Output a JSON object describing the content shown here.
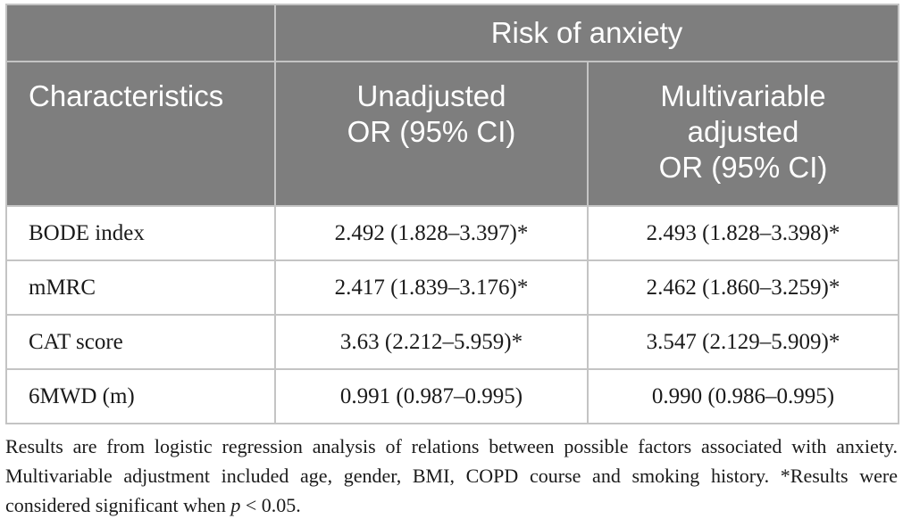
{
  "table": {
    "group_header": "Risk of anxiety",
    "columns": {
      "characteristics": "Characteristics",
      "unadjusted": [
        "Unadjusted",
        "OR (95% CI)"
      ],
      "adjusted": [
        "Multivariable",
        "adjusted",
        "OR (95% CI)"
      ]
    },
    "rows": [
      {
        "label": "BODE index",
        "unadjusted": "2.492 (1.828–3.397)*",
        "adjusted": "2.493 (1.828–3.398)*"
      },
      {
        "label": "mMRC",
        "unadjusted": "2.417 (1.839–3.176)*",
        "adjusted": "2.462 (1.860–3.259)*"
      },
      {
        "label": "CAT score",
        "unadjusted": "3.63 (2.212–5.959)*",
        "adjusted": "3.547 (2.129–5.909)*"
      },
      {
        "label": "6MWD (m)",
        "unadjusted": "0.991 (0.987–0.995)",
        "adjusted": "0.990 (0.986–0.995)"
      }
    ]
  },
  "footnote": {
    "text_before_p": "Results are from logistic regression analysis of relations between possible factors associated with anxiety. Multivariable adjustment included age, gender, BMI, COPD course and smoking history. *Results were considered significant when ",
    "p_symbol": "p",
    "text_after_p": " < 0.05."
  }
}
